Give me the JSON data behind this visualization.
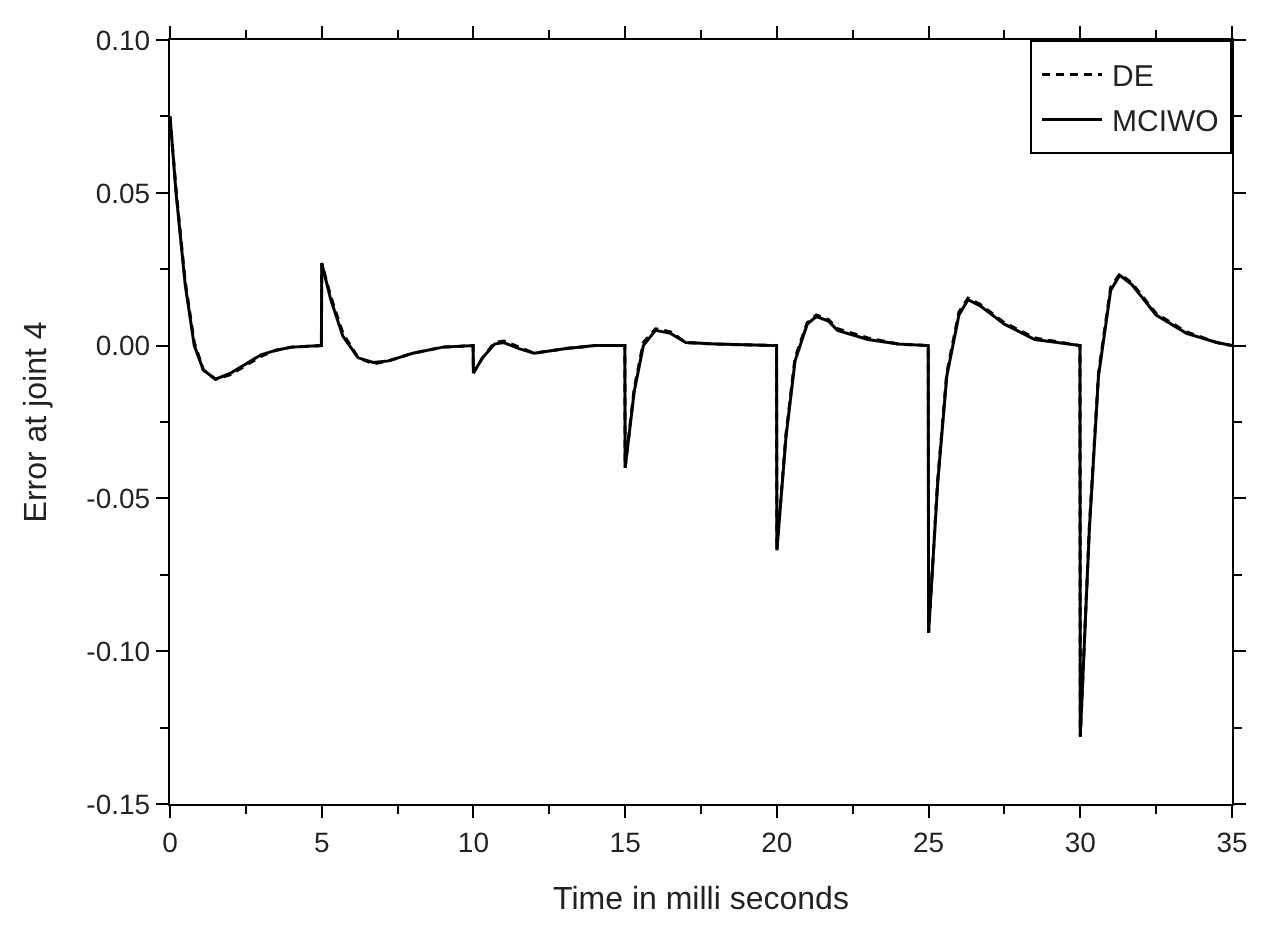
{
  "chart_data": {
    "type": "line",
    "xlabel": "Time in milli seconds",
    "ylabel": "Error at joint 4",
    "x": [
      0,
      0.2,
      0.5,
      0.8,
      1.1,
      1.5,
      2,
      2.5,
      3,
      3.5,
      4,
      4.99,
      5,
      5.3,
      5.7,
      6.2,
      6.7,
      7.2,
      8,
      9,
      9.99,
      10,
      10.3,
      10.7,
      11,
      11.5,
      12,
      13,
      14,
      14.99,
      15,
      15.3,
      15.6,
      16,
      16.5,
      17,
      18,
      19.99,
      20,
      20.3,
      20.6,
      21,
      21.3,
      21.7,
      22,
      23,
      24,
      24.99,
      25,
      25.3,
      25.6,
      26,
      26.3,
      26.7,
      27.5,
      28.5,
      29.99,
      30,
      30.3,
      30.6,
      31,
      31.3,
      31.7,
      32.5,
      33.5,
      34.5,
      35
    ],
    "series": [
      {
        "name": "DE",
        "color": "#000000",
        "line_style": "dashed",
        "values": [
          0.075,
          0.051,
          0.021,
          0.001,
          -0.008,
          -0.011,
          -0.0095,
          -0.0065,
          -0.0035,
          -0.0015,
          -0.0005,
          0,
          0.027,
          0.016,
          0.004,
          -0.004,
          -0.006,
          -0.005,
          -0.0025,
          -0.0005,
          0,
          -0.009,
          -0.004,
          0.001,
          0.0015,
          -0.0005,
          -0.0025,
          -0.001,
          0,
          0,
          -0.04,
          -0.014,
          0.001,
          0.0055,
          0.0045,
          0.001,
          0.0005,
          0,
          -0.067,
          -0.029,
          -0.004,
          0.0075,
          0.01,
          0.0085,
          0.0055,
          0.0025,
          0.0005,
          0,
          -0.094,
          -0.044,
          -0.009,
          0.011,
          0.0155,
          0.0135,
          0.0075,
          0.0025,
          0,
          -0.128,
          -0.059,
          -0.009,
          0.019,
          0.0235,
          0.0205,
          0.0105,
          0.0045,
          0.001,
          0
        ]
      },
      {
        "name": "MCIWO",
        "color": "#000000",
        "line_style": "solid",
        "values": [
          0.075,
          0.05,
          0.02,
          0.0,
          -0.008,
          -0.011,
          -0.009,
          -0.006,
          -0.003,
          -0.0015,
          -0.0005,
          0,
          0.027,
          0.015,
          0.003,
          -0.004,
          -0.0055,
          -0.005,
          -0.0025,
          -0.0005,
          0,
          -0.009,
          -0.004,
          0.0005,
          0.001,
          -0.001,
          -0.0025,
          -0.001,
          0,
          0,
          -0.04,
          -0.015,
          0.0,
          0.005,
          0.004,
          0.001,
          0.0005,
          0,
          -0.067,
          -0.03,
          -0.005,
          0.007,
          0.0095,
          0.008,
          0.005,
          0.002,
          0.0005,
          0,
          -0.094,
          -0.045,
          -0.01,
          0.01,
          0.015,
          0.013,
          0.007,
          0.002,
          0,
          -0.128,
          -0.06,
          -0.01,
          0.018,
          0.023,
          0.02,
          0.01,
          0.004,
          0.001,
          0
        ]
      }
    ],
    "xlim": [
      0,
      35
    ],
    "xticks": [
      0,
      5,
      10,
      15,
      20,
      25,
      30,
      35
    ],
    "ylim": [
      -0.15,
      0.1
    ],
    "yticks": [
      {
        "value": -0.15,
        "label": "-0.15"
      },
      {
        "value": -0.1,
        "label": "-0.10"
      },
      {
        "value": -0.05,
        "label": "-0.05"
      },
      {
        "value": 0,
        "label": "0.00"
      },
      {
        "value": 0.05,
        "label": "0.05"
      },
      {
        "value": 0.1,
        "label": "0.10"
      }
    ],
    "legend": "top right",
    "marker": "none"
  }
}
